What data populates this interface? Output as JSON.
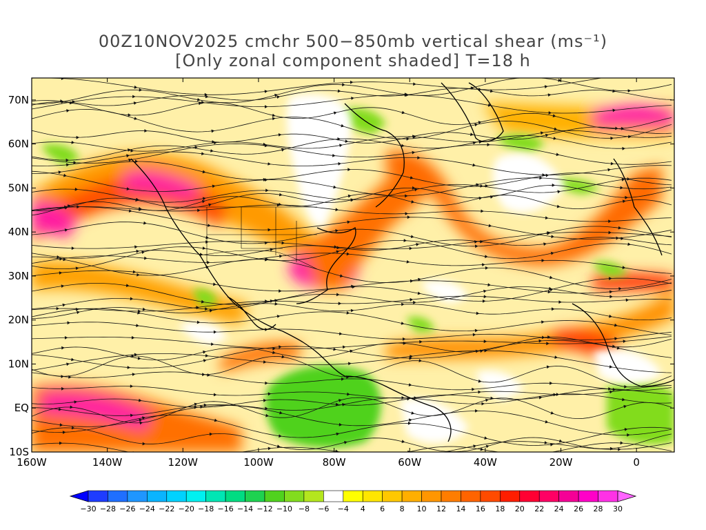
{
  "title": {
    "line1": "00Z10NOV2025 cmchr 500−850mb vertical shear (ms⁻¹)",
    "line2": "[Only zonal component shaded] T=18 h"
  },
  "map": {
    "lon_range": [
      -160,
      10
    ],
    "lat_range": [
      -10,
      75
    ],
    "lat_ticks": [
      {
        "value": 70,
        "label": "70N"
      },
      {
        "value": 60,
        "label": "60N"
      },
      {
        "value": 50,
        "label": "50N"
      },
      {
        "value": 40,
        "label": "40N"
      },
      {
        "value": 30,
        "label": "30N"
      },
      {
        "value": 20,
        "label": "20N"
      },
      {
        "value": 10,
        "label": "10N"
      },
      {
        "value": 0,
        "label": "EQ"
      },
      {
        "value": -10,
        "label": "10S"
      }
    ],
    "lon_ticks": [
      {
        "value": -160,
        "label": "160W"
      },
      {
        "value": -140,
        "label": "140W"
      },
      {
        "value": -120,
        "label": "120W"
      },
      {
        "value": -100,
        "label": "100W"
      },
      {
        "value": -80,
        "label": "80W"
      },
      {
        "value": -60,
        "label": "60W"
      },
      {
        "value": -40,
        "label": "40W"
      },
      {
        "value": -20,
        "label": "20W"
      },
      {
        "value": 0,
        "label": "0"
      }
    ]
  },
  "colorbar": {
    "levels": [
      -30,
      -28,
      -26,
      -24,
      -22,
      -20,
      -18,
      -16,
      -14,
      -12,
      -10,
      -8,
      -6,
      -4,
      4,
      6,
      8,
      10,
      12,
      14,
      16,
      18,
      20,
      22,
      24,
      26,
      28,
      30
    ],
    "colors": [
      "#0000ff",
      "#1e3cff",
      "#1f6fff",
      "#1f96ff",
      "#0ab4ff",
      "#00d2ff",
      "#00f0f0",
      "#00e6b4",
      "#00dc82",
      "#1ed250",
      "#50d21e",
      "#82dc1e",
      "#b4e61e",
      "#ffffff",
      "#ffff00",
      "#ffe600",
      "#ffc800",
      "#ffaf00",
      "#ff9600",
      "#ff7d00",
      "#ff6400",
      "#ff4b00",
      "#ff1e00",
      "#ff0032",
      "#ff0064",
      "#f50096",
      "#ff00c8",
      "#ff32e6",
      "#ff64ff"
    ]
  }
}
